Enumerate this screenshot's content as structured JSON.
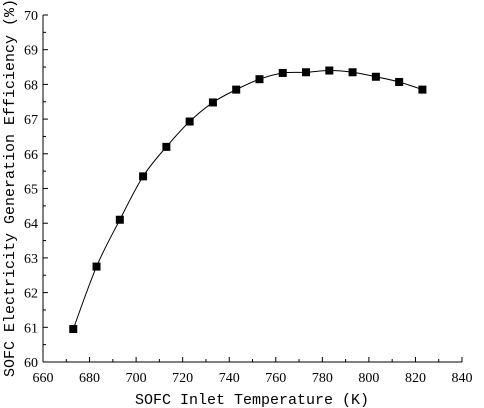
{
  "chart_data": {
    "type": "line",
    "title": "",
    "xlabel": "SOFC Inlet Temperature (K)",
    "ylabel": "SOFC Electricity Generation Efficiency (%)",
    "xlim": [
      660,
      840
    ],
    "ylim": [
      60,
      70
    ],
    "xticks": [
      660,
      680,
      700,
      720,
      740,
      760,
      780,
      800,
      820,
      840
    ],
    "yticks": [
      60,
      61,
      62,
      63,
      64,
      65,
      66,
      67,
      68,
      69,
      70
    ],
    "grid": false,
    "legend": "none",
    "series": [
      {
        "marker": "square",
        "color": "#000000",
        "x": [
          673,
          683,
          693,
          703,
          713,
          723,
          733,
          743,
          753,
          763,
          773,
          783,
          793,
          803,
          813,
          823
        ],
        "y": [
          60.95,
          62.75,
          64.1,
          65.35,
          66.2,
          66.93,
          67.48,
          67.85,
          68.15,
          68.33,
          68.35,
          68.4,
          68.35,
          68.22,
          68.07,
          67.85
        ]
      }
    ]
  }
}
